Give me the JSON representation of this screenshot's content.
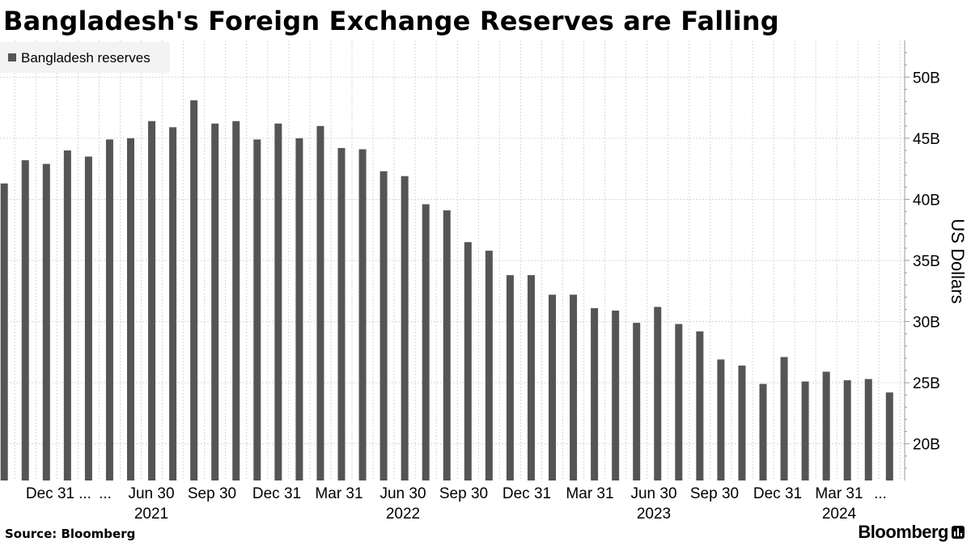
{
  "title": "Bangladesh's Foreign Exchange Reserves are Falling",
  "source": "Source: Bloomberg",
  "brand": "Bloomberg",
  "colors": {
    "bar": "#555555",
    "grid": "#d6d6d6",
    "legend_bg": "#f3f3f3",
    "axis": "#999999",
    "text": "#000000"
  },
  "chart_data": {
    "type": "bar",
    "title": "Bangladesh's Foreign Exchange Reserves are Falling",
    "ylabel": "US Dollars",
    "y_axis_side": "right",
    "ylim": [
      17,
      53
    ],
    "y_ticks": [
      "20B",
      "25B",
      "30B",
      "35B",
      "40B",
      "45B",
      "50B"
    ],
    "y_tick_values": [
      20,
      25,
      30,
      35,
      40,
      45,
      50
    ],
    "grid": true,
    "legend_position": "top-left",
    "x_tick_labels": [
      "Dec 31",
      "...",
      "...",
      "Jun 30",
      "Sep 30",
      "Dec 31",
      "Mar 31",
      "Jun 30",
      "Sep 30",
      "Dec 31",
      "Mar 31",
      "Jun 30",
      "Sep 30",
      "Dec 31",
      "Mar 31",
      "..."
    ],
    "x_year_labels": [
      "2021",
      "2022",
      "2023",
      "2024"
    ],
    "series": [
      {
        "name": "Bangladesh reserves",
        "values": [
          41.3,
          43.2,
          42.9,
          44.0,
          43.5,
          44.9,
          45.0,
          46.4,
          45.9,
          48.1,
          46.2,
          46.4,
          44.9,
          46.2,
          45.0,
          46.0,
          44.2,
          44.1,
          42.3,
          41.9,
          39.6,
          39.1,
          36.5,
          35.8,
          33.8,
          33.8,
          32.2,
          32.2,
          31.1,
          30.9,
          29.9,
          31.2,
          29.8,
          29.2,
          26.9,
          26.4,
          24.9,
          27.1,
          25.1,
          25.9,
          25.2,
          25.3,
          24.2
        ]
      }
    ]
  }
}
